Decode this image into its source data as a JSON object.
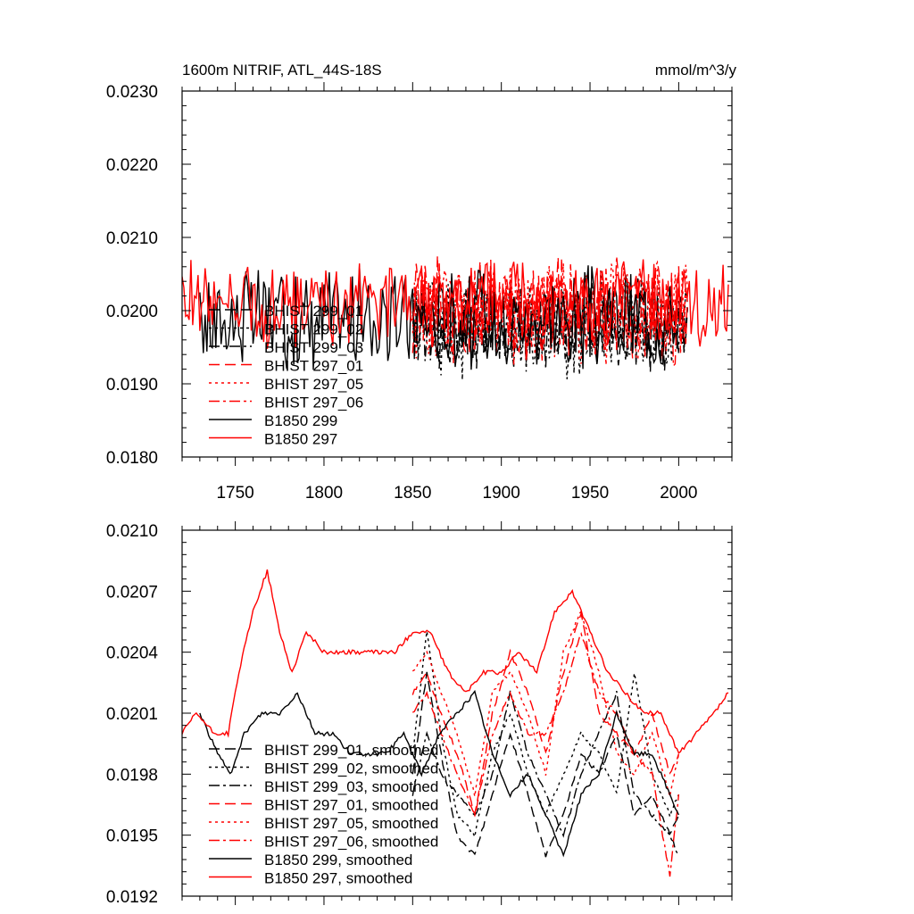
{
  "chart_data": [
    {
      "type": "line",
      "title": "1600m NITRIF, ATL_44S-18S",
      "units": "mmol/m^3/y",
      "xlim": [
        1720,
        2030
      ],
      "ylim": [
        0.018,
        0.023
      ],
      "xticks": [
        1750,
        1800,
        1850,
        1900,
        1950,
        2000
      ],
      "xtick_labels": [
        "1750",
        "1800",
        "1850",
        "1900",
        "1950",
        "2000"
      ],
      "yticks": [
        0.018,
        0.019,
        0.02,
        0.021,
        0.022,
        0.023
      ],
      "ytick_labels": [
        "0.0180",
        "0.0190",
        "0.0200",
        "0.0210",
        "0.0220",
        "0.0230"
      ],
      "legend_position": "left",
      "series": [
        {
          "name": "BHIST 299_01",
          "color": "#000000",
          "dash": "dash",
          "x_start": 1850,
          "x_end": 2005,
          "mean": 0.0198,
          "amp": 0.0005,
          "seed": 11
        },
        {
          "name": "BHIST 299_02",
          "color": "#000000",
          "dash": "dot",
          "x_start": 1850,
          "x_end": 2005,
          "mean": 0.0198,
          "amp": 0.0006,
          "seed": 12
        },
        {
          "name": "BHIST 299_03",
          "color": "#000000",
          "dash": "dashdot",
          "x_start": 1850,
          "x_end": 2005,
          "mean": 0.0198,
          "amp": 0.0005,
          "seed": 13
        },
        {
          "name": "BHIST 297_01",
          "color": "#ff0000",
          "dash": "dash",
          "x_start": 1850,
          "x_end": 2005,
          "mean": 0.02,
          "amp": 0.0006,
          "seed": 14
        },
        {
          "name": "BHIST 297_05",
          "color": "#ff0000",
          "dash": "dot",
          "x_start": 1850,
          "x_end": 2005,
          "mean": 0.02,
          "amp": 0.0006,
          "seed": 15
        },
        {
          "name": "BHIST 297_06",
          "color": "#ff0000",
          "dash": "dashdot",
          "x_start": 1850,
          "x_end": 2005,
          "mean": 0.02,
          "amp": 0.0006,
          "seed": 16
        },
        {
          "name": "B1850 299",
          "color": "#000000",
          "dash": "solid",
          "x_start": 1730,
          "x_end": 2000,
          "mean": 0.0199,
          "amp": 0.0006,
          "seed": 17
        },
        {
          "name": "B1850 297",
          "color": "#ff0000",
          "dash": "solid",
          "x_start": 1720,
          "x_end": 2028,
          "mean": 0.0201,
          "amp": 0.0005,
          "seed": 18
        }
      ]
    },
    {
      "type": "line",
      "title": "",
      "xlim": [
        1720,
        2030
      ],
      "ylim": [
        0.0192,
        0.021
      ],
      "xticks": [
        1750,
        1800,
        1850,
        1900,
        1950,
        2000
      ],
      "xtick_labels": [
        "",
        "",
        "",
        "",
        "",
        ""
      ],
      "yticks": [
        0.0192,
        0.0195,
        0.0198,
        0.0201,
        0.0204,
        0.0207,
        0.021
      ],
      "ytick_labels": [
        "0.0192",
        "0.0195",
        "0.0198",
        "0.0201",
        "0.0204",
        "0.0207",
        "0.0210"
      ],
      "legend_position": "left",
      "series": [
        {
          "name": "BHIST 299_01, smoothed",
          "color": "#000000",
          "dash": "dash",
          "points": [
            [
              1850,
              0.0198
            ],
            [
              1858,
              0.0203
            ],
            [
              1866,
              0.0199
            ],
            [
              1875,
              0.0195
            ],
            [
              1885,
              0.0194
            ],
            [
              1895,
              0.0197
            ],
            [
              1905,
              0.02
            ],
            [
              1915,
              0.0197
            ],
            [
              1925,
              0.0194
            ],
            [
              1935,
              0.0196
            ],
            [
              1945,
              0.0199
            ],
            [
              1955,
              0.0198
            ],
            [
              1965,
              0.02
            ],
            [
              1975,
              0.0196
            ],
            [
              1985,
              0.0197
            ],
            [
              1995,
              0.0195
            ],
            [
              2000,
              0.0196
            ]
          ]
        },
        {
          "name": "BHIST 299_02, smoothed",
          "color": "#000000",
          "dash": "dot",
          "points": [
            [
              1850,
              0.0199
            ],
            [
              1858,
              0.0205
            ],
            [
              1866,
              0.02
            ],
            [
              1875,
              0.0196
            ],
            [
              1885,
              0.0195
            ],
            [
              1895,
              0.0199
            ],
            [
              1905,
              0.0201
            ],
            [
              1915,
              0.0198
            ],
            [
              1925,
              0.0196
            ],
            [
              1935,
              0.0198
            ],
            [
              1945,
              0.02
            ],
            [
              1955,
              0.0199
            ],
            [
              1965,
              0.0197
            ],
            [
              1975,
              0.0203
            ],
            [
              1985,
              0.0198
            ],
            [
              1995,
              0.0196
            ],
            [
              2000,
              0.0197
            ]
          ]
        },
        {
          "name": "BHIST 299_03, smoothed",
          "color": "#000000",
          "dash": "dashdot",
          "points": [
            [
              1850,
              0.0197
            ],
            [
              1858,
              0.02
            ],
            [
              1866,
              0.0198
            ],
            [
              1875,
              0.0197
            ],
            [
              1885,
              0.0196
            ],
            [
              1895,
              0.0198
            ],
            [
              1905,
              0.0202
            ],
            [
              1915,
              0.0199
            ],
            [
              1925,
              0.0197
            ],
            [
              1935,
              0.0195
            ],
            [
              1945,
              0.0198
            ],
            [
              1955,
              0.02
            ],
            [
              1965,
              0.0202
            ],
            [
              1975,
              0.0197
            ],
            [
              1985,
              0.0196
            ],
            [
              1995,
              0.0195
            ],
            [
              2000,
              0.0194
            ]
          ]
        },
        {
          "name": "BHIST 297_01, smoothed",
          "color": "#ff0000",
          "dash": "dash",
          "points": [
            [
              1850,
              0.0202
            ],
            [
              1858,
              0.0203
            ],
            [
              1866,
              0.0201
            ],
            [
              1875,
              0.0199
            ],
            [
              1885,
              0.0196
            ],
            [
              1895,
              0.0201
            ],
            [
              1905,
              0.0204
            ],
            [
              1915,
              0.0202
            ],
            [
              1925,
              0.0199
            ],
            [
              1935,
              0.0203
            ],
            [
              1945,
              0.0206
            ],
            [
              1955,
              0.0201
            ],
            [
              1965,
              0.02
            ],
            [
              1975,
              0.0199
            ],
            [
              1985,
              0.0201
            ],
            [
              1995,
              0.0198
            ],
            [
              2000,
              0.0199
            ]
          ]
        },
        {
          "name": "BHIST 297_05, smoothed",
          "color": "#ff0000",
          "dash": "dot",
          "points": [
            [
              1850,
              0.0203
            ],
            [
              1858,
              0.0204
            ],
            [
              1866,
              0.0202
            ],
            [
              1875,
              0.02
            ],
            [
              1885,
              0.0197
            ],
            [
              1895,
              0.0202
            ],
            [
              1905,
              0.0203
            ],
            [
              1915,
              0.0201
            ],
            [
              1925,
              0.0198
            ],
            [
              1935,
              0.0204
            ],
            [
              1945,
              0.0206
            ],
            [
              1955,
              0.0203
            ],
            [
              1965,
              0.0199
            ],
            [
              1975,
              0.0198
            ],
            [
              1985,
              0.02
            ],
            [
              1995,
              0.0197
            ],
            [
              2000,
              0.0199
            ]
          ]
        },
        {
          "name": "BHIST 297_06, smoothed",
          "color": "#ff0000",
          "dash": "dashdot",
          "points": [
            [
              1850,
              0.0201
            ],
            [
              1858,
              0.0202
            ],
            [
              1866,
              0.02
            ],
            [
              1875,
              0.0198
            ],
            [
              1885,
              0.0196
            ],
            [
              1895,
              0.02
            ],
            [
              1905,
              0.0202
            ],
            [
              1915,
              0.02
            ],
            [
              1925,
              0.02
            ],
            [
              1935,
              0.0202
            ],
            [
              1945,
              0.0205
            ],
            [
              1955,
              0.0202
            ],
            [
              1965,
              0.0201
            ],
            [
              1975,
              0.0199
            ],
            [
              1985,
              0.0198
            ],
            [
              1995,
              0.0193
            ],
            [
              2000,
              0.0197
            ]
          ]
        },
        {
          "name": "B1850 299, smoothed",
          "color": "#000000",
          "dash": "solid",
          "points": [
            [
              1730,
              0.0201
            ],
            [
              1740,
              0.0199
            ],
            [
              1748,
              0.0198
            ],
            [
              1755,
              0.02
            ],
            [
              1765,
              0.0201
            ],
            [
              1775,
              0.0201
            ],
            [
              1785,
              0.0202
            ],
            [
              1795,
              0.02
            ],
            [
              1805,
              0.02
            ],
            [
              1815,
              0.0199
            ],
            [
              1825,
              0.0199
            ],
            [
              1835,
              0.0199
            ],
            [
              1845,
              0.02
            ],
            [
              1855,
              0.0198
            ],
            [
              1865,
              0.02
            ],
            [
              1875,
              0.0201
            ],
            [
              1885,
              0.0202
            ],
            [
              1895,
              0.0199
            ],
            [
              1905,
              0.0197
            ],
            [
              1915,
              0.0198
            ],
            [
              1925,
              0.0196
            ],
            [
              1935,
              0.0194
            ],
            [
              1945,
              0.0197
            ],
            [
              1955,
              0.0198
            ],
            [
              1965,
              0.0201
            ],
            [
              1975,
              0.0199
            ],
            [
              1985,
              0.0199
            ],
            [
              1995,
              0.0197
            ],
            [
              2000,
              0.0196
            ]
          ]
        },
        {
          "name": "B1850 297, smoothed",
          "color": "#ff0000",
          "dash": "solid",
          "points": [
            [
              1720,
              0.02
            ],
            [
              1728,
              0.0201
            ],
            [
              1738,
              0.02
            ],
            [
              1746,
              0.02
            ],
            [
              1752,
              0.0203
            ],
            [
              1760,
              0.0206
            ],
            [
              1768,
              0.0208
            ],
            [
              1775,
              0.0205
            ],
            [
              1782,
              0.0203
            ],
            [
              1790,
              0.0205
            ],
            [
              1800,
              0.0204
            ],
            [
              1810,
              0.0204
            ],
            [
              1820,
              0.0204
            ],
            [
              1830,
              0.0204
            ],
            [
              1840,
              0.0204
            ],
            [
              1850,
              0.0205
            ],
            [
              1860,
              0.0205
            ],
            [
              1870,
              0.0203
            ],
            [
              1880,
              0.0202
            ],
            [
              1890,
              0.0203
            ],
            [
              1900,
              0.0203
            ],
            [
              1910,
              0.0204
            ],
            [
              1920,
              0.0203
            ],
            [
              1930,
              0.0206
            ],
            [
              1940,
              0.0207
            ],
            [
              1950,
              0.0205
            ],
            [
              1960,
              0.0203
            ],
            [
              1970,
              0.0202
            ],
            [
              1980,
              0.0201
            ],
            [
              1990,
              0.0201
            ],
            [
              2000,
              0.0199
            ],
            [
              2010,
              0.02
            ],
            [
              2020,
              0.0201
            ],
            [
              2028,
              0.0202
            ]
          ]
        }
      ]
    }
  ]
}
